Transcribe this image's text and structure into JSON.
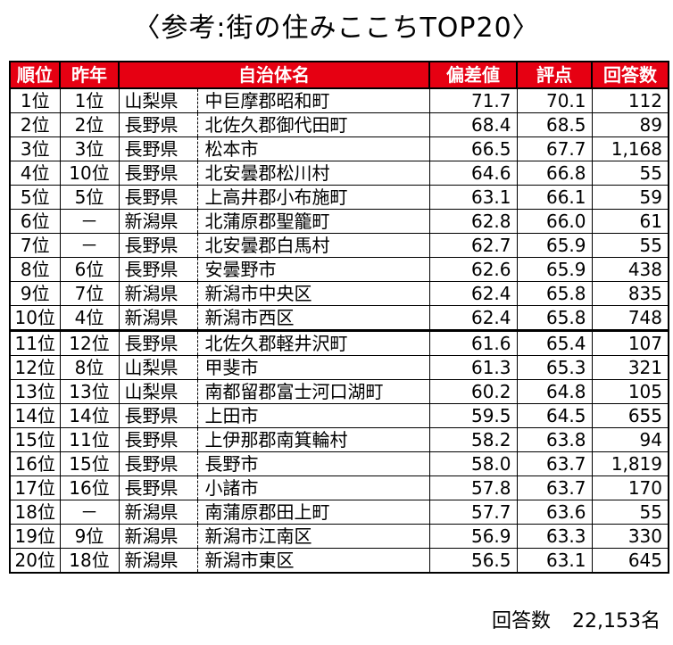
{
  "title": "〈参考:街の住みここちTOP20〉",
  "headers": {
    "rank": "順位",
    "prev": "昨年",
    "municipality": "自治体名",
    "deviation": "偏差値",
    "score": "評点",
    "responses": "回答数"
  },
  "rows": [
    {
      "rank": "1位",
      "prev": "1位",
      "pref": "山梨県",
      "city": "中巨摩郡昭和町",
      "dev": "71.7",
      "score": "70.1",
      "count": "112"
    },
    {
      "rank": "2位",
      "prev": "2位",
      "pref": "長野県",
      "city": "北佐久郡御代田町",
      "dev": "68.4",
      "score": "68.5",
      "count": "89"
    },
    {
      "rank": "3位",
      "prev": "3位",
      "pref": "長野県",
      "city": "松本市",
      "dev": "66.5",
      "score": "67.7",
      "count": "1,168"
    },
    {
      "rank": "4位",
      "prev": "10位",
      "pref": "長野県",
      "city": "北安曇郡松川村",
      "dev": "64.6",
      "score": "66.8",
      "count": "55"
    },
    {
      "rank": "5位",
      "prev": "5位",
      "pref": "長野県",
      "city": "上高井郡小布施町",
      "dev": "63.1",
      "score": "66.1",
      "count": "59"
    },
    {
      "rank": "6位",
      "prev": "－",
      "pref": "新潟県",
      "city": "北蒲原郡聖籠町",
      "dev": "62.8",
      "score": "66.0",
      "count": "61"
    },
    {
      "rank": "7位",
      "prev": "－",
      "pref": "長野県",
      "city": "北安曇郡白馬村",
      "dev": "62.7",
      "score": "65.9",
      "count": "55"
    },
    {
      "rank": "8位",
      "prev": "6位",
      "pref": "長野県",
      "city": "安曇野市",
      "dev": "62.6",
      "score": "65.9",
      "count": "438"
    },
    {
      "rank": "9位",
      "prev": "7位",
      "pref": "新潟県",
      "city": "新潟市中央区",
      "dev": "62.4",
      "score": "65.8",
      "count": "835"
    },
    {
      "rank": "10位",
      "prev": "4位",
      "pref": "新潟県",
      "city": "新潟市西区",
      "dev": "62.4",
      "score": "65.8",
      "count": "748"
    },
    {
      "rank": "11位",
      "prev": "12位",
      "pref": "長野県",
      "city": "北佐久郡軽井沢町",
      "dev": "61.6",
      "score": "65.4",
      "count": "107"
    },
    {
      "rank": "12位",
      "prev": "8位",
      "pref": "山梨県",
      "city": "甲斐市",
      "dev": "61.3",
      "score": "65.3",
      "count": "321"
    },
    {
      "rank": "13位",
      "prev": "13位",
      "pref": "山梨県",
      "city": "南都留郡富士河口湖町",
      "dev": "60.2",
      "score": "64.8",
      "count": "105"
    },
    {
      "rank": "14位",
      "prev": "14位",
      "pref": "長野県",
      "city": "上田市",
      "dev": "59.5",
      "score": "64.5",
      "count": "655"
    },
    {
      "rank": "15位",
      "prev": "11位",
      "pref": "長野県",
      "city": "上伊那郡南箕輪村",
      "dev": "58.2",
      "score": "63.8",
      "count": "94"
    },
    {
      "rank": "16位",
      "prev": "15位",
      "pref": "長野県",
      "city": "長野市",
      "dev": "58.0",
      "score": "63.7",
      "count": "1,819"
    },
    {
      "rank": "17位",
      "prev": "16位",
      "pref": "長野県",
      "city": "小諸市",
      "dev": "57.8",
      "score": "63.7",
      "count": "170"
    },
    {
      "rank": "18位",
      "prev": "－",
      "pref": "新潟県",
      "city": "南蒲原郡田上町",
      "dev": "57.7",
      "score": "63.6",
      "count": "55"
    },
    {
      "rank": "19位",
      "prev": "9位",
      "pref": "新潟県",
      "city": "新潟市江南区",
      "dev": "56.9",
      "score": "63.3",
      "count": "330"
    },
    {
      "rank": "20位",
      "prev": "18位",
      "pref": "新潟県",
      "city": "新潟市東区",
      "dev": "56.5",
      "score": "63.1",
      "count": "645"
    }
  ],
  "footer": {
    "label": "回答数",
    "value": "22,153名"
  },
  "colors": {
    "header_bg": "#e60012",
    "header_text": "#ffffff"
  }
}
